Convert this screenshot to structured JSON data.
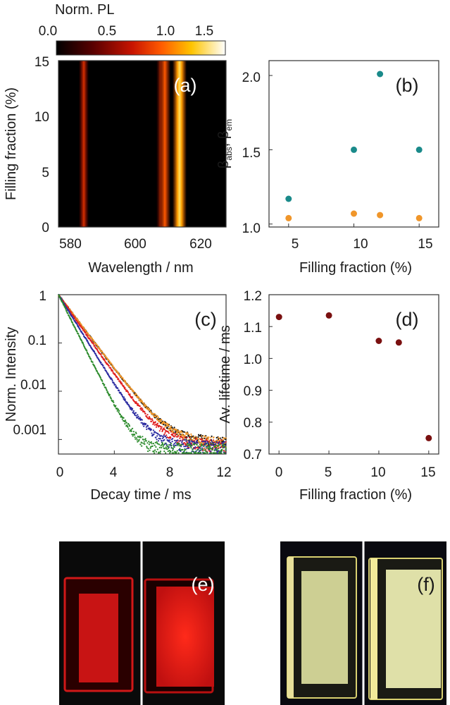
{
  "colorbar": {
    "label": "Norm. PL",
    "ticks": [
      "0.0",
      "0.5",
      "1.0",
      "1.5"
    ]
  },
  "chart_data": [
    {
      "panel": "(a)",
      "type": "heatmap",
      "xlabel": "Wavelength / nm",
      "ylabel": "Filling fraction (%)",
      "xlim": [
        580,
        630
      ],
      "ylim": [
        0,
        15
      ],
      "xticks": [
        "580",
        "600",
        "620"
      ],
      "yticks": [
        "0",
        "5",
        "10",
        "15"
      ],
      "colorscale": [
        "#000000",
        "#5a0000",
        "#c81400",
        "#ff5a00",
        "#ffc400",
        "#ffffff"
      ],
      "zlim": [
        0.0,
        1.75
      ],
      "peaks": [
        {
          "wavelength": 588,
          "intensity": 0.7
        },
        {
          "wavelength": 611,
          "intensity": 0.4
        },
        {
          "wavelength": 613,
          "intensity": 1.05
        },
        {
          "wavelength": 616.5,
          "intensity": 1.5
        }
      ]
    },
    {
      "panel": "(b)",
      "type": "scatter",
      "xlabel": "Filling fraction (%)",
      "ylabel": "β_abs, β_em",
      "xlim": [
        3.5,
        16.5
      ],
      "ylim": [
        0.98,
        2.1
      ],
      "xticks": [
        "5",
        "10",
        "15"
      ],
      "yticks": [
        "1.0",
        "1.5",
        "2.0"
      ],
      "series": [
        {
          "color": "#1a8a8a",
          "x": [
            5,
            10,
            12,
            15
          ],
          "y": [
            1.17,
            1.5,
            2.01,
            1.5
          ]
        },
        {
          "color": "#f0962a",
          "x": [
            5,
            10,
            12,
            15
          ],
          "y": [
            1.04,
            1.07,
            1.06,
            1.04
          ]
        }
      ]
    },
    {
      "panel": "(c)",
      "type": "scatter",
      "scale_y": "log",
      "xlabel": "Decay time / ms",
      "ylabel": "Norm. Intensity",
      "xlim": [
        0,
        12
      ],
      "ylim": [
        0.0005,
        1
      ],
      "xticks": [
        "0",
        "4",
        "8",
        "12"
      ],
      "yticks": [
        "1",
        "0.1",
        "0.01",
        "0.001"
      ],
      "series": [
        {
          "color": "#111111",
          "tau_ms": 1.13,
          "floor": 0.0009
        },
        {
          "color": "#f0962a",
          "tau_ms": 1.135,
          "floor": 0.00085
        },
        {
          "color": "#e02020",
          "tau_ms": 1.05,
          "floor": 0.00075
        },
        {
          "color": "#2a2aa0",
          "tau_ms": 0.93,
          "floor": 0.0007
        },
        {
          "color": "#2a8a2a",
          "tau_ms": 0.75,
          "floor": 0.0006
        }
      ]
    },
    {
      "panel": "(d)",
      "type": "scatter",
      "xlabel": "Filling fraction (%)",
      "ylabel": "Av. lifetime / ms",
      "xlim": [
        -1,
        16
      ],
      "ylim": [
        0.7,
        1.2
      ],
      "xticks": [
        "0",
        "5",
        "10",
        "15"
      ],
      "yticks": [
        "0.7",
        "0.8",
        "0.9",
        "1.0",
        "1.1",
        "1.2"
      ],
      "series": [
        {
          "color": "#7a1010",
          "x": [
            0,
            5,
            10,
            12,
            15
          ],
          "y": [
            1.13,
            1.135,
            1.055,
            1.05,
            0.75
          ]
        }
      ]
    }
  ],
  "photos": {
    "e_label": "(e)",
    "f_label": "(f)"
  }
}
